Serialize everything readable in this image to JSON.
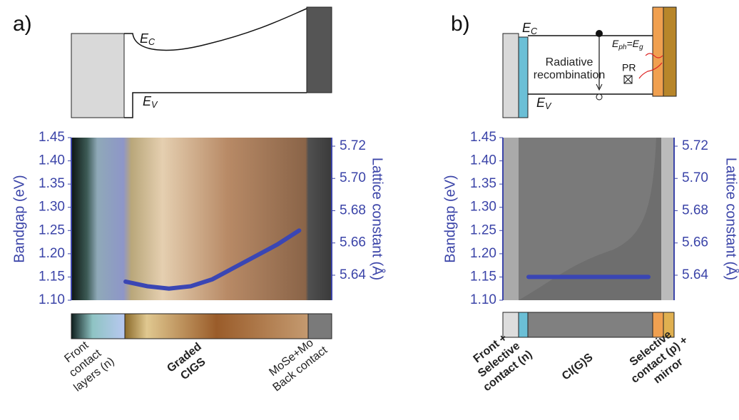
{
  "chart_data": [
    {
      "type": "line",
      "panel": "a)",
      "y_label": "Bandgap (eV)",
      "y2_label": "Lattice constant (Å)",
      "ylim": [
        1.1,
        1.45
      ],
      "yticks": [
        {
          "value": 1.1,
          "label": "1.10"
        },
        1.15,
        {
          "value": 1.2,
          "label": "1.20"
        },
        1.25,
        {
          "value": 1.3,
          "label": "1.30"
        },
        1.35,
        {
          "value": 1.4,
          "label": "1.40"
        },
        1.45
      ],
      "y2lim": [
        5.6245,
        5.7253
      ],
      "y2ticks": [
        5.64,
        5.66,
        5.68,
        {
          "value": 5.7,
          "label": "5.70"
        },
        5.72
      ],
      "categories": [
        null,
        null,
        null,
        null,
        null,
        null,
        null,
        null,
        null,
        null,
        null,
        null
      ],
      "series": [
        {
          "color": "#3a46b4",
          "values": [
            null,
            null,
            1.14,
            1.13,
            1.125,
            1.13,
            1.145,
            1.17,
            1.195,
            1.22,
            1.25,
            null
          ]
        }
      ],
      "band_labels": {
        "ec": {
          "main": "E",
          "sub": "C"
        },
        "ev": {
          "main": "E",
          "sub": "V"
        }
      },
      "layers": [
        [
          "Front",
          "contact",
          "layers (n)"
        ],
        [
          "Graded",
          "CIGS"
        ],
        [
          "MoSe+Mo",
          "Back contact"
        ]
      ]
    },
    {
      "type": "line",
      "panel": "b)",
      "y_label": "Bandgap (eV)",
      "y2_label": "Lattice constant (Å)",
      "ylim": [
        1.1,
        1.45
      ],
      "yticks": [
        {
          "value": 1.1,
          "label": "1.10"
        },
        1.15,
        {
          "value": 1.2,
          "label": "1.20"
        },
        1.25,
        {
          "value": 1.3,
          "label": "1.30"
        },
        1.35,
        {
          "value": 1.4,
          "label": "1.40"
        },
        1.45
      ],
      "y2lim": [
        5.6245,
        5.7253
      ],
      "y2ticks": [
        5.64,
        5.66,
        5.68,
        {
          "value": 5.7,
          "label": "5.70"
        },
        5.72
      ],
      "categories": [
        null,
        null,
        null,
        null,
        null,
        null,
        null,
        null,
        null,
        null
      ],
      "series": [
        {
          "color": "#3a46b4",
          "values": [
            null,
            1.15,
            1.15,
            1.15,
            1.15,
            1.15,
            1.15,
            1.15,
            1.15,
            null
          ]
        }
      ],
      "band_labels": {
        "ec": {
          "main": "E",
          "sub": "C"
        },
        "ev": {
          "main": "E",
          "sub": "V"
        },
        "photon": {
          "main1": "E",
          "sub1": "ph",
          "eq": "=E",
          "sub2": "g"
        },
        "recomb": [
          "Radiative",
          "recombination"
        ],
        "pr": "PR"
      },
      "layers": [
        [
          "Front +",
          "Selective",
          "contact (n)"
        ],
        [
          "CI(G)S"
        ],
        [
          "Selective",
          "contact (p) +",
          "mirror"
        ]
      ]
    }
  ]
}
